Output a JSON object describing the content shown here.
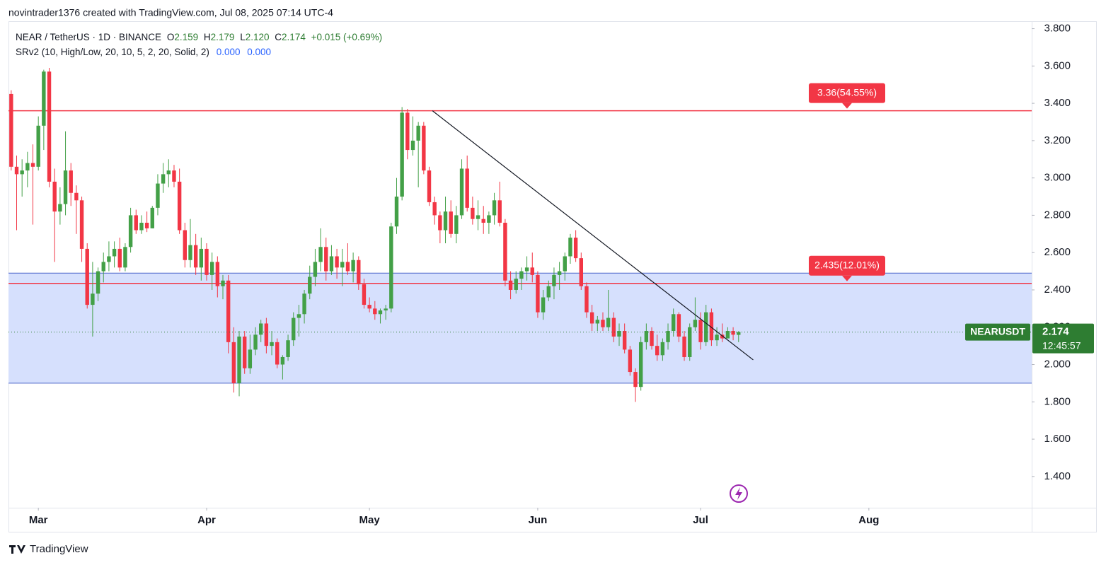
{
  "header": {
    "attribution": "novintrader1376 created with TradingView.com, Jul 08, 2025 07:14 UTC-4"
  },
  "chart_data": {
    "type": "candlestick",
    "title": "NEAR / TetherUS · 1D · BINANCE",
    "quote": [
      {
        "key": "O",
        "value": "2.159"
      },
      {
        "key": "H",
        "value": "2.179"
      },
      {
        "key": "L",
        "value": "2.120"
      },
      {
        "key": "C",
        "value": "2.174"
      }
    ],
    "change": "+0.015 (+0.69%)",
    "indicator": {
      "name": "SRv2 (10, High/Low, 20, 10, 5, 2, 20, Solid, 2)",
      "values": [
        "0.000",
        "0.000"
      ]
    },
    "up_color": "#43a047",
    "down_color": "#f23645",
    "open": [
      3.45,
      3.06,
      3.02,
      3.04,
      3.08,
      3.06,
      3.28,
      3.57,
      2.98,
      2.82,
      2.86,
      3.04,
      2.92,
      2.88,
      2.62,
      2.32,
      2.38,
      2.5,
      2.55,
      2.58,
      2.62,
      2.52,
      2.63,
      2.8,
      2.72,
      2.76,
      2.73,
      2.84,
      2.97,
      3.02,
      3.04,
      2.98,
      2.72,
      2.56,
      2.64,
      2.52,
      2.62,
      2.48,
      2.55,
      2.42,
      2.45,
      2.12,
      1.9,
      2.15,
      1.98,
      2.08,
      2.16,
      2.22,
      2.1,
      2.12,
      2.0,
      2.04,
      2.13,
      2.25,
      2.27,
      2.38,
      2.47,
      2.55,
      2.63,
      2.5,
      2.58,
      2.52,
      2.55,
      2.5,
      2.56,
      2.43,
      2.32,
      2.3,
      2.27,
      2.29,
      2.3,
      2.74,
      2.9,
      3.35,
      3.15,
      3.2,
      3.28,
      3.04,
      2.87,
      2.8,
      2.72,
      2.82,
      2.7,
      2.8,
      3.05,
      2.84,
      2.78,
      2.78,
      2.76,
      2.8,
      2.88,
      2.76,
      2.45,
      2.4,
      2.46,
      2.5,
      2.52,
      2.48,
      2.28,
      2.36,
      2.42,
      2.48,
      2.5,
      2.58,
      2.68,
      2.57,
      2.42,
      2.28,
      2.22,
      2.24,
      2.2,
      2.25,
      2.15,
      2.18,
      2.08,
      1.96,
      1.88,
      2.12,
      2.18,
      2.1,
      2.05,
      2.12,
      2.18,
      2.27,
      2.15,
      2.04,
      2.2,
      2.24,
      2.12,
      2.28,
      2.13,
      2.16,
      2.14,
      2.18,
      2.159
    ],
    "high": [
      3.47,
      3.12,
      3.1,
      3.14,
      3.18,
      3.33,
      3.58,
      3.59,
      3.05,
      2.95,
      3.25,
      3.08,
      2.96,
      2.9,
      2.65,
      2.55,
      2.52,
      2.6,
      2.66,
      2.66,
      2.68,
      2.65,
      2.84,
      2.83,
      2.8,
      2.82,
      2.85,
      3.02,
      3.08,
      3.1,
      3.07,
      3.05,
      2.76,
      2.78,
      2.7,
      2.68,
      2.65,
      2.6,
      2.58,
      2.48,
      2.48,
      2.2,
      2.18,
      2.18,
      2.16,
      2.2,
      2.24,
      2.25,
      2.18,
      2.14,
      2.05,
      2.16,
      2.28,
      2.32,
      2.4,
      2.53,
      2.62,
      2.73,
      2.68,
      2.64,
      2.62,
      2.62,
      2.65,
      2.6,
      2.58,
      2.46,
      2.36,
      2.34,
      2.3,
      2.32,
      2.76,
      3.0,
      3.38,
      3.37,
      3.33,
      3.3,
      3.3,
      3.06,
      2.9,
      2.82,
      2.9,
      2.88,
      2.85,
      3.1,
      3.12,
      2.9,
      2.88,
      2.85,
      2.82,
      2.92,
      2.98,
      2.78,
      2.5,
      2.5,
      2.52,
      2.58,
      2.6,
      2.5,
      2.4,
      2.45,
      2.52,
      2.55,
      2.6,
      2.7,
      2.72,
      2.6,
      2.44,
      2.32,
      2.26,
      2.28,
      2.4,
      2.28,
      2.22,
      2.22,
      2.1,
      1.98,
      2.15,
      2.22,
      2.2,
      2.16,
      2.14,
      2.22,
      2.3,
      2.28,
      2.18,
      2.22,
      2.36,
      2.28,
      2.32,
      2.3,
      2.2,
      2.22,
      2.2,
      2.2,
      2.179
    ],
    "low": [
      3.04,
      2.72,
      2.9,
      2.95,
      2.75,
      3.04,
      3.15,
      2.95,
      2.55,
      2.75,
      2.8,
      2.85,
      2.7,
      2.55,
      2.3,
      2.15,
      2.34,
      2.44,
      2.5,
      2.52,
      2.5,
      2.5,
      2.6,
      2.7,
      2.7,
      2.71,
      2.73,
      2.8,
      2.92,
      2.95,
      2.95,
      2.7,
      2.52,
      2.52,
      2.48,
      2.45,
      2.45,
      2.4,
      2.36,
      2.35,
      2.06,
      1.85,
      1.83,
      1.95,
      1.95,
      2.05,
      2.12,
      2.06,
      2.05,
      1.98,
      1.92,
      2.02,
      2.1,
      2.15,
      2.22,
      2.35,
      2.42,
      2.5,
      2.45,
      2.48,
      2.46,
      2.42,
      2.48,
      2.44,
      2.4,
      2.3,
      2.28,
      2.24,
      2.22,
      2.24,
      2.28,
      2.7,
      2.88,
      3.1,
      3.12,
      2.95,
      3.02,
      2.85,
      2.75,
      2.65,
      2.65,
      2.68,
      2.65,
      2.78,
      2.82,
      2.75,
      2.72,
      2.7,
      2.7,
      2.75,
      2.74,
      2.42,
      2.35,
      2.38,
      2.4,
      2.45,
      2.44,
      2.25,
      2.24,
      2.34,
      2.35,
      2.4,
      2.45,
      2.54,
      2.55,
      2.4,
      2.25,
      2.18,
      2.18,
      2.18,
      2.18,
      2.12,
      2.1,
      2.06,
      1.94,
      1.8,
      1.86,
      2.08,
      2.08,
      2.02,
      2.02,
      2.08,
      2.15,
      2.12,
      2.02,
      2.02,
      2.18,
      2.08,
      2.1,
      2.1,
      2.1,
      2.12,
      2.14,
      2.13,
      2.12
    ],
    "close": [
      3.06,
      3.02,
      3.04,
      3.08,
      3.06,
      3.28,
      3.57,
      2.98,
      2.82,
      2.86,
      3.04,
      2.92,
      2.88,
      2.62,
      2.32,
      2.38,
      2.5,
      2.55,
      2.58,
      2.62,
      2.52,
      2.63,
      2.8,
      2.72,
      2.76,
      2.73,
      2.84,
      2.97,
      3.02,
      3.04,
      2.98,
      2.72,
      2.56,
      2.64,
      2.52,
      2.62,
      2.48,
      2.55,
      2.42,
      2.45,
      2.12,
      1.9,
      2.15,
      1.98,
      2.08,
      2.16,
      2.22,
      2.1,
      2.12,
      2.0,
      2.04,
      2.13,
      2.25,
      2.27,
      2.38,
      2.47,
      2.55,
      2.63,
      2.5,
      2.58,
      2.52,
      2.55,
      2.5,
      2.56,
      2.43,
      2.32,
      2.3,
      2.27,
      2.29,
      2.3,
      2.74,
      2.9,
      3.35,
      3.15,
      3.2,
      3.28,
      3.04,
      2.87,
      2.8,
      2.72,
      2.82,
      2.7,
      2.8,
      3.05,
      2.84,
      2.78,
      2.8,
      2.76,
      2.8,
      2.88,
      2.76,
      2.45,
      2.4,
      2.46,
      2.5,
      2.52,
      2.48,
      2.28,
      2.36,
      2.42,
      2.48,
      2.5,
      2.58,
      2.68,
      2.57,
      2.42,
      2.28,
      2.22,
      2.24,
      2.2,
      2.25,
      2.15,
      2.18,
      2.08,
      1.96,
      1.88,
      2.12,
      2.18,
      2.1,
      2.05,
      2.12,
      2.18,
      2.27,
      2.15,
      2.04,
      2.2,
      2.24,
      2.12,
      2.28,
      2.13,
      2.16,
      2.14,
      2.18,
      2.16,
      2.174
    ],
    "xlim": [
      -0.5,
      188
    ],
    "xticks": [
      {
        "value": 5,
        "label": "Mar"
      },
      {
        "value": 36,
        "label": "Apr"
      },
      {
        "value": 66,
        "label": "May"
      },
      {
        "value": 97,
        "label": "Jun"
      },
      {
        "value": 127,
        "label": "Jul"
      },
      {
        "value": 158,
        "label": "Aug"
      }
    ],
    "ylim": [
      1.1,
      3.84
    ],
    "yticks": [
      {
        "value": 1.4,
        "label": "1.400"
      },
      {
        "value": 1.6,
        "label": "1.600"
      },
      {
        "value": 1.8,
        "label": "1.800"
      },
      {
        "value": 2.0,
        "label": "2.000"
      },
      {
        "value": 2.2,
        "label": "2.200"
      },
      {
        "value": 2.4,
        "label": "2.400"
      },
      {
        "value": 2.6,
        "label": "2.600"
      },
      {
        "value": 2.8,
        "label": "2.800"
      },
      {
        "value": 3.0,
        "label": "3.000"
      },
      {
        "value": 3.2,
        "label": "3.200"
      },
      {
        "value": 3.4,
        "label": "3.400"
      },
      {
        "value": 3.6,
        "label": "3.600"
      },
      {
        "value": 3.8,
        "label": "3.800"
      }
    ],
    "zone": {
      "low": 1.9,
      "high": 2.49,
      "color": "#d6e0fd",
      "border": "#4a63c9"
    },
    "levels": [
      {
        "value": 3.36,
        "label": "3.36(54.55%)",
        "color": "#f23645"
      },
      {
        "value": 2.435,
        "label": "2.435(12.01%)",
        "color": "#f23645"
      }
    ],
    "trendline": {
      "x": [
        77.6,
        136.7
      ],
      "y": [
        3.36,
        2.025
      ]
    },
    "last_price": {
      "symbol": "NEARUSDT",
      "value": 2.174,
      "countdown": "12:45:57",
      "color": "#2e7d32"
    }
  },
  "footer": {
    "brand": "TradingView"
  }
}
